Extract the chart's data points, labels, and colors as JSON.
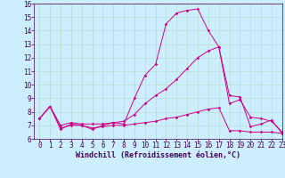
{
  "xlabel": "Windchill (Refroidissement éolien,°C)",
  "background_color": "#cceeff",
  "grid_color": "#b8ddd0",
  "line_color": "#cc0088",
  "xlim": [
    -0.5,
    23
  ],
  "ylim": [
    6,
    16
  ],
  "yticks": [
    6,
    7,
    8,
    9,
    10,
    11,
    12,
    13,
    14,
    15,
    16
  ],
  "xticks": [
    0,
    1,
    2,
    3,
    4,
    5,
    6,
    7,
    8,
    9,
    10,
    11,
    12,
    13,
    14,
    15,
    16,
    17,
    18,
    19,
    20,
    21,
    22,
    23
  ],
  "line1_x": [
    0,
    1,
    2,
    3,
    4,
    5,
    6,
    7,
    8,
    9,
    10,
    11,
    12,
    13,
    14,
    15,
    16,
    17,
    18,
    19,
    20,
    21,
    22,
    23
  ],
  "line1_y": [
    7.5,
    8.4,
    6.7,
    7.1,
    7.0,
    6.7,
    7.0,
    7.2,
    7.1,
    9.0,
    10.7,
    11.5,
    14.5,
    15.3,
    15.5,
    15.6,
    14.0,
    12.8,
    9.2,
    9.1,
    6.9,
    7.1,
    7.4,
    6.4
  ],
  "line2_x": [
    0,
    1,
    2,
    3,
    4,
    5,
    6,
    7,
    8,
    9,
    10,
    11,
    12,
    13,
    14,
    15,
    16,
    17,
    18,
    19,
    20,
    21,
    22,
    23
  ],
  "line2_y": [
    7.5,
    8.4,
    7.0,
    7.2,
    7.1,
    7.1,
    7.1,
    7.2,
    7.3,
    7.8,
    8.6,
    9.2,
    9.7,
    10.4,
    11.2,
    12.0,
    12.5,
    12.8,
    8.6,
    8.9,
    7.6,
    7.5,
    7.3,
    6.5
  ],
  "line3_x": [
    0,
    1,
    2,
    3,
    4,
    5,
    6,
    7,
    8,
    9,
    10,
    11,
    12,
    13,
    14,
    15,
    16,
    17,
    18,
    19,
    20,
    21,
    22,
    23
  ],
  "line3_y": [
    7.5,
    8.4,
    6.8,
    7.0,
    7.0,
    6.8,
    6.9,
    7.0,
    7.0,
    7.1,
    7.2,
    7.3,
    7.5,
    7.6,
    7.8,
    8.0,
    8.2,
    8.3,
    6.6,
    6.6,
    6.5,
    6.5,
    6.5,
    6.4
  ],
  "tick_fontsize": 5.5,
  "xlabel_fontsize": 6.0,
  "linewidth": 0.7,
  "markersize": 1.8
}
